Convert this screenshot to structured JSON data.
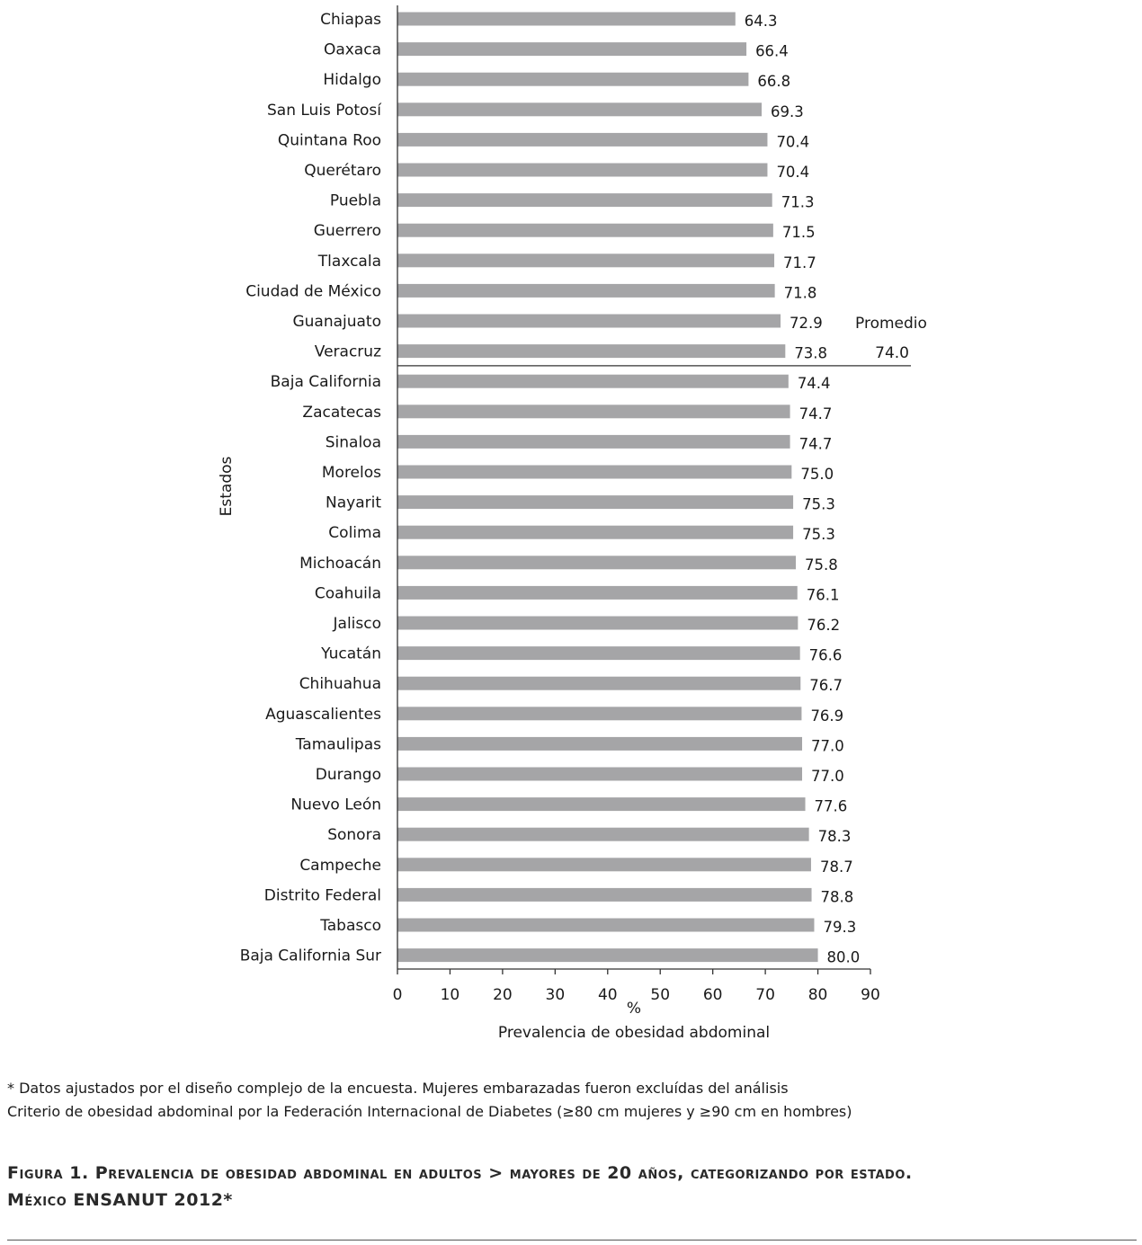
{
  "chart_data": {
    "type": "bar",
    "orientation": "horizontal",
    "categories": [
      "Chiapas",
      "Oaxaca",
      "Hidalgo",
      "San Luis Potosí",
      "Quintana Roo",
      "Querétaro",
      "Puebla",
      "Guerrero",
      "Tlaxcala",
      "Ciudad de México",
      "Guanajuato",
      "Veracruz",
      "Baja California",
      "Zacatecas",
      "Sinaloa",
      "Morelos",
      "Nayarit",
      "Colima",
      "Michoacán",
      "Coahuila",
      "Jalisco",
      "Yucatán",
      "Chihuahua",
      "Aguascalientes",
      "Tamaulipas",
      "Durango",
      "Nuevo León",
      "Sonora",
      "Campeche",
      "Distrito Federal",
      "Tabasco",
      "Baja California Sur"
    ],
    "values": [
      64.3,
      66.4,
      66.8,
      69.3,
      70.4,
      70.4,
      71.3,
      71.5,
      71.7,
      71.8,
      72.9,
      73.8,
      74.4,
      74.7,
      74.7,
      75.0,
      75.3,
      75.3,
      75.8,
      76.1,
      76.2,
      76.6,
      76.7,
      76.9,
      77.0,
      77.0,
      77.6,
      78.3,
      78.7,
      78.8,
      79.3,
      80.0
    ],
    "value_labels": [
      "64.3",
      "66.4",
      "66.8",
      "69.3",
      "70.4",
      "70.4",
      "71.3",
      "71.5",
      "71.7",
      "71.8",
      "72.9",
      "73.8",
      "74.4",
      "74.7",
      "74.7",
      "75.0",
      "75.3",
      "75.3",
      "75.8",
      "76.1",
      "76.2",
      "76.6",
      "76.7",
      "76.9",
      "77.0",
      "77.0",
      "77.6",
      "78.3",
      "78.7",
      "78.8",
      "79.3",
      "80.0"
    ],
    "xticks": [
      "0",
      "10",
      "20",
      "30",
      "40",
      "50",
      "60",
      "70",
      "80",
      "90"
    ],
    "xlim": [
      0,
      90
    ],
    "xunit": "%",
    "xlabel": "Prevalencia de obesidad abdominal",
    "ylabel": "Estados",
    "bar_color": "#a5a5a7",
    "reference": {
      "label": "Promedio",
      "value_label": "74.0",
      "after_category": "Veracruz"
    },
    "grid": false
  },
  "footnotes": [
    "* Datos ajustados por el diseño complejo de la encuesta. Mujeres embarazadas fueron excluídas del análisis",
    "Criterio de obesidad abdominal por la Federación Internacional de Diabetes (≥80 cm mujeres y ≥90 cm en hombres)"
  ],
  "caption": {
    "line1": "Figura 1. Prevalencia de obesidad abdominal en adultos > mayores de 20 años, categorizando por estado.",
    "line2": "México ENSANUT 2012*"
  }
}
